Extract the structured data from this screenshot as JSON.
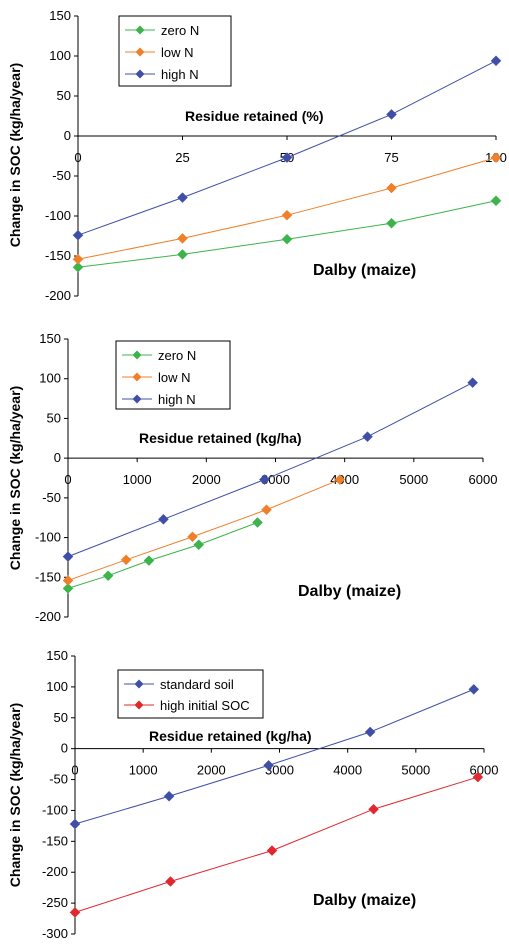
{
  "chart_data": [
    {
      "type": "line",
      "xlabel": "Residue retained (%)",
      "ylabel": "Change in SOC (kg/ha/year)",
      "annotation": "Dalby (maize)",
      "xlim": [
        0,
        100
      ],
      "ylim": [
        -200,
        150
      ],
      "x_ticks": [
        "0",
        "25",
        "50",
        "75",
        "100"
      ],
      "y_ticks": [
        "150",
        "100",
        "50",
        "0",
        "-50",
        "-100",
        "-150",
        "-200"
      ],
      "legend_position": "top-left",
      "series": [
        {
          "name": "zero N",
          "color": "#3cb44b",
          "x": [
            0,
            25,
            50,
            75,
            100
          ],
          "y": [
            -164,
            -148,
            -129,
            -109,
            -81
          ]
        },
        {
          "name": "low N",
          "color": "#f07f2a",
          "x": [
            0,
            25,
            50,
            75,
            100
          ],
          "y": [
            -154,
            -128,
            -99,
            -65,
            -27
          ]
        },
        {
          "name": "high N",
          "color": "#3f4fa8",
          "x": [
            0,
            25,
            50,
            75,
            100
          ],
          "y": [
            -124,
            -77,
            -27,
            27,
            94
          ]
        }
      ]
    },
    {
      "type": "line",
      "xlabel": "Residue retained (kg/ha)",
      "ylabel": "Change in SOC (kg/ha/year)",
      "annotation": "Dalby (maize)",
      "xlim": [
        0,
        6000
      ],
      "ylim": [
        -200,
        150
      ],
      "x_ticks": [
        "0",
        "1000",
        "2000",
        "3000",
        "4000",
        "5000",
        "6000"
      ],
      "y_ticks": [
        "150",
        "100",
        "50",
        "0",
        "-50",
        "-100",
        "-150",
        "-200"
      ],
      "legend_position": "top-left",
      "series": [
        {
          "name": "zero N",
          "color": "#3cb44b",
          "x": [
            0,
            580,
            1170,
            1890,
            2740
          ],
          "y": [
            -164,
            -148,
            -129,
            -109,
            -81
          ]
        },
        {
          "name": "low N",
          "color": "#f07f2a",
          "x": [
            0,
            840,
            1800,
            2870,
            3930
          ],
          "y": [
            -154,
            -128,
            -99,
            -65,
            -27
          ]
        },
        {
          "name": "high N",
          "color": "#3f4fa8",
          "x": [
            0,
            1380,
            2840,
            4330,
            5850
          ],
          "y": [
            -124,
            -77,
            -27,
            27,
            95
          ]
        }
      ]
    },
    {
      "type": "line",
      "xlabel": "Residue retained (kg/ha)",
      "ylabel": "Change in SOC (kg/ha/year)",
      "annotation": "Dalby (maize)",
      "xlim": [
        0,
        6000
      ],
      "ylim": [
        -300,
        150
      ],
      "x_ticks": [
        "0",
        "1000",
        "2000",
        "3000",
        "4000",
        "5000",
        "6000"
      ],
      "y_ticks": [
        "150",
        "100",
        "50",
        "0",
        "-50",
        "-100",
        "-150",
        "-200",
        "-250",
        "-300"
      ],
      "legend_position": "top-left",
      "series": [
        {
          "name": "standard soil",
          "color": "#3f4fa8",
          "x": [
            0,
            1380,
            2840,
            4330,
            5850
          ],
          "y": [
            -122,
            -77,
            -27,
            27,
            96
          ]
        },
        {
          "name": "high initial SOC",
          "color": "#e0282e",
          "x": [
            0,
            1400,
            2890,
            4380,
            5910
          ],
          "y": [
            -265,
            -215,
            -165,
            -98,
            -46
          ]
        }
      ]
    }
  ]
}
